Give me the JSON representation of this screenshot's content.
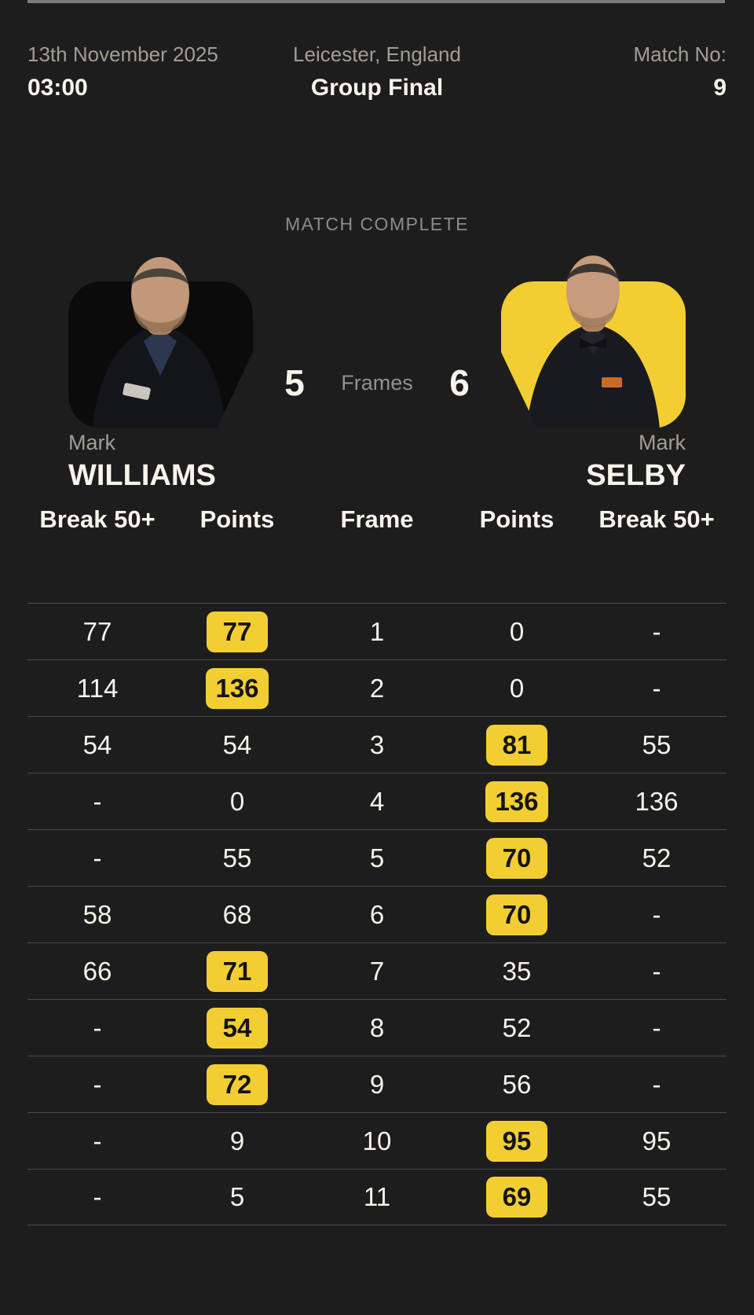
{
  "header": {
    "date": "13th November 2025",
    "time": "03:00",
    "venue": "Leicester, England",
    "stage": "Group Final",
    "match_no_label": "Match No:",
    "match_no": "9"
  },
  "status_text": "MATCH COMPLETE",
  "scoreboard": {
    "home_frames": "5",
    "frames_label": "Frames",
    "away_frames": "6"
  },
  "players": {
    "home": {
      "first_name": "Mark",
      "last_name": "WILLIAMS"
    },
    "away": {
      "first_name": "Mark",
      "last_name": "SELBY"
    }
  },
  "frame_table": {
    "headers": [
      "Break 50+",
      "Points",
      "Frame",
      "Points",
      "Break 50+"
    ],
    "rows": [
      {
        "home_break": "77",
        "home_points": "77",
        "frame": "1",
        "away_points": "0",
        "away_break": "-",
        "winner": "home"
      },
      {
        "home_break": "114",
        "home_points": "136",
        "frame": "2",
        "away_points": "0",
        "away_break": "-",
        "winner": "home"
      },
      {
        "home_break": "54",
        "home_points": "54",
        "frame": "3",
        "away_points": "81",
        "away_break": "55",
        "winner": "away"
      },
      {
        "home_break": "-",
        "home_points": "0",
        "frame": "4",
        "away_points": "136",
        "away_break": "136",
        "winner": "away"
      },
      {
        "home_break": "-",
        "home_points": "55",
        "frame": "5",
        "away_points": "70",
        "away_break": "52",
        "winner": "away"
      },
      {
        "home_break": "58",
        "home_points": "68",
        "frame": "6",
        "away_points": "70",
        "away_break": "-",
        "winner": "away"
      },
      {
        "home_break": "66",
        "home_points": "71",
        "frame": "7",
        "away_points": "35",
        "away_break": "-",
        "winner": "home"
      },
      {
        "home_break": "-",
        "home_points": "54",
        "frame": "8",
        "away_points": "52",
        "away_break": "-",
        "winner": "home"
      },
      {
        "home_break": "-",
        "home_points": "72",
        "frame": "9",
        "away_points": "56",
        "away_break": "-",
        "winner": "home"
      },
      {
        "home_break": "-",
        "home_points": "9",
        "frame": "10",
        "away_points": "95",
        "away_break": "95",
        "winner": "away"
      },
      {
        "home_break": "-",
        "home_points": "5",
        "frame": "11",
        "away_points": "69",
        "away_break": "55",
        "winner": "away"
      }
    ]
  },
  "colors": {
    "accent": "#F3CE32",
    "background": "#1E1D1D",
    "card_dark": "#0B0B0B",
    "divider": "#4B4B4B",
    "muted_text": "#A19D97",
    "primary_text": "#F7F4EC",
    "top_rule": "#7B7B7B"
  }
}
